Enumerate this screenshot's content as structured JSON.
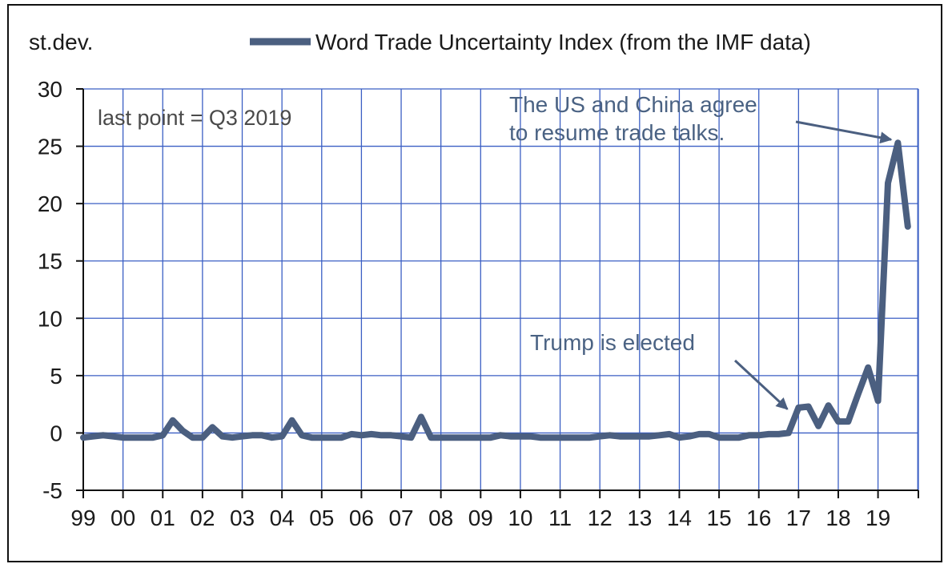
{
  "chart_data": {
    "type": "line",
    "unit_label": "st.dev.",
    "title": "",
    "xlabel": "",
    "ylabel": "",
    "ylim": [
      -5,
      30
    ],
    "y_ticks": [
      "30",
      "25",
      "20",
      "15",
      "10",
      "5",
      "0",
      "-5"
    ],
    "y_tick_values": [
      30,
      25,
      20,
      15,
      10,
      5,
      0,
      -5
    ],
    "x_tick_labels": [
      "99",
      "00",
      "01",
      "02",
      "03",
      "04",
      "05",
      "06",
      "07",
      "08",
      "09",
      "10",
      "11",
      "12",
      "13",
      "14",
      "15",
      "16",
      "17",
      "18",
      "19"
    ],
    "x_tick_values": [
      1999,
      2000,
      2001,
      2002,
      2003,
      2004,
      2005,
      2006,
      2007,
      2008,
      2009,
      2010,
      2011,
      2012,
      2013,
      2014,
      2015,
      2016,
      2017,
      2018,
      2019
    ],
    "xlim": [
      1999,
      2019.9
    ],
    "grid": true,
    "legend_position": "top",
    "series_color": "#4b5f80",
    "grid_color": "#3b5fc4",
    "series": [
      {
        "name": "Word Trade Uncertainty Index (from the IMF data)",
        "x": [
          1999.0,
          1999.25,
          1999.5,
          1999.75,
          2000.0,
          2000.25,
          2000.5,
          2000.75,
          2001.0,
          2001.25,
          2001.5,
          2001.75,
          2002.0,
          2002.25,
          2002.5,
          2002.75,
          2003.0,
          2003.25,
          2003.5,
          2003.75,
          2004.0,
          2004.25,
          2004.5,
          2004.75,
          2005.0,
          2005.25,
          2005.5,
          2005.75,
          2006.0,
          2006.25,
          2006.5,
          2006.75,
          2007.0,
          2007.25,
          2007.5,
          2007.75,
          2008.0,
          2008.25,
          2008.5,
          2008.75,
          2009.0,
          2009.25,
          2009.5,
          2009.75,
          2010.0,
          2010.25,
          2010.5,
          2010.75,
          2011.0,
          2011.25,
          2011.5,
          2011.75,
          2012.0,
          2012.25,
          2012.5,
          2012.75,
          2013.0,
          2013.25,
          2013.5,
          2013.75,
          2014.0,
          2014.25,
          2014.5,
          2014.75,
          2015.0,
          2015.25,
          2015.5,
          2015.75,
          2016.0,
          2016.25,
          2016.5,
          2016.75,
          2017.0,
          2017.25,
          2017.5,
          2017.75,
          2018.0,
          2018.25,
          2018.5,
          2018.75,
          2019.0,
          2019.25,
          2019.5,
          2019.75
        ],
        "values": [
          -0.4,
          -0.3,
          -0.2,
          -0.3,
          -0.4,
          -0.4,
          -0.4,
          -0.4,
          -0.2,
          1.1,
          0.2,
          -0.4,
          -0.4,
          0.5,
          -0.3,
          -0.4,
          -0.3,
          -0.2,
          -0.2,
          -0.4,
          -0.3,
          1.1,
          -0.2,
          -0.4,
          -0.4,
          -0.4,
          -0.4,
          -0.1,
          -0.2,
          -0.1,
          -0.2,
          -0.2,
          -0.3,
          -0.4,
          1.4,
          -0.4,
          -0.4,
          -0.4,
          -0.4,
          -0.4,
          -0.4,
          -0.4,
          -0.2,
          -0.3,
          -0.3,
          -0.3,
          -0.4,
          -0.4,
          -0.4,
          -0.4,
          -0.4,
          -0.4,
          -0.3,
          -0.2,
          -0.3,
          -0.3,
          -0.3,
          -0.3,
          -0.2,
          -0.1,
          -0.4,
          -0.3,
          -0.1,
          -0.1,
          -0.4,
          -0.4,
          -0.4,
          -0.2,
          -0.2,
          -0.1,
          -0.1,
          0.0,
          2.2,
          2.3,
          0.6,
          2.4,
          1.0,
          1.0,
          3.4,
          5.7,
          2.8,
          21.8,
          25.3,
          18.0
        ]
      }
    ],
    "annotations": [
      {
        "text": "last point = Q3 2019"
      },
      {
        "text_lines": [
          "The US and China agree",
          "to resume trade talks."
        ],
        "arrow_to": [
          2019.45,
          25.3
        ]
      },
      {
        "text": "Trump is elected",
        "arrow_to": [
          2016.8,
          1.8
        ]
      }
    ]
  }
}
